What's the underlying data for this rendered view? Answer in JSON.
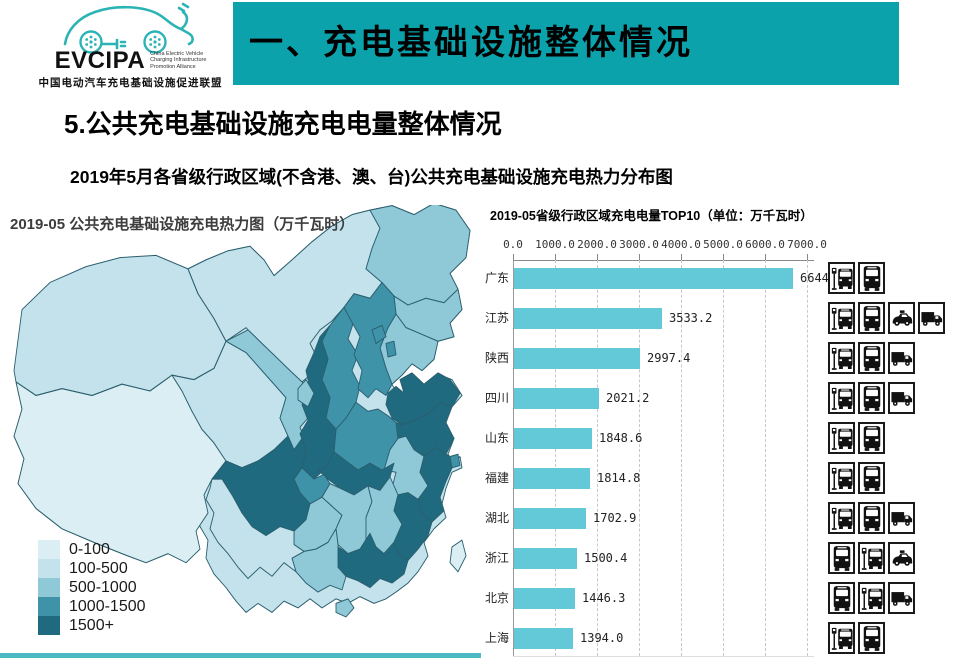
{
  "logo": {
    "acronym": "EVCIPA",
    "tagline_lines": [
      "China Electric Vehicle",
      "Charging Infrastructure",
      "Promotion Alliance"
    ],
    "chinese_name": "中国电动汽车充电基础设施促进联盟",
    "brand_color": "#2cb3b5"
  },
  "banner": {
    "title": "一、充电基础设施整体情况",
    "bg_color": "#0ca2ac"
  },
  "heading": "5.公共充电基础设施充电电量整体情况",
  "subheading": "2019年5月各省级行政区域(不含港、澳、台)公共充电基础设施充电热力分布图",
  "map": {
    "title": "2019-05 公共充电基础设施充电热力图（万千瓦时）",
    "palette": [
      "#daeef4",
      "#c3e2ec",
      "#8fc9d8",
      "#3e93a9",
      "#1f6a7e"
    ],
    "border_color": "#2b5f6e",
    "bottom_strip_color": "#4db9c3",
    "legend": [
      {
        "label": "0-100",
        "level": 1
      },
      {
        "label": "100-500",
        "level": 2
      },
      {
        "label": "500-1000",
        "level": 3
      },
      {
        "label": "1000-1500",
        "level": 4
      },
      {
        "label": "1500+",
        "level": 5
      }
    ],
    "provinces": [
      {
        "key": "xinjiang",
        "name": "新疆",
        "level": 2
      },
      {
        "key": "xizang",
        "name": "西藏",
        "level": 1
      },
      {
        "key": "qinghai",
        "name": "青海",
        "level": 2
      },
      {
        "key": "gansu",
        "name": "甘肃",
        "level": 3
      },
      {
        "key": "neimenggu",
        "name": "内蒙古",
        "level": 2
      },
      {
        "key": "heilongjiang",
        "name": "黑龙江",
        "level": 3
      },
      {
        "key": "jilin",
        "name": "吉林",
        "level": 3
      },
      {
        "key": "liaoning",
        "name": "辽宁",
        "level": 3
      },
      {
        "key": "hebei",
        "name": "河北",
        "level": 4
      },
      {
        "key": "beijing",
        "name": "北京",
        "level": 4
      },
      {
        "key": "tianjin",
        "name": "天津",
        "level": 4
      },
      {
        "key": "shanxi",
        "name": "山西",
        "level": 4
      },
      {
        "key": "shaanxi",
        "name": "陕西",
        "level": 5
      },
      {
        "key": "ningxia",
        "name": "宁夏",
        "level": 3
      },
      {
        "key": "shandong",
        "name": "山东",
        "level": 5
      },
      {
        "key": "henan",
        "name": "河南",
        "level": 4
      },
      {
        "key": "jiangsu",
        "name": "江苏",
        "level": 5
      },
      {
        "key": "anhui",
        "name": "安徽",
        "level": 3
      },
      {
        "key": "shanghai",
        "name": "上海",
        "level": 4
      },
      {
        "key": "zhejiang",
        "name": "浙江",
        "level": 5
      },
      {
        "key": "hubei",
        "name": "湖北",
        "level": 5
      },
      {
        "key": "sichuan",
        "name": "四川",
        "level": 5
      },
      {
        "key": "chongqing",
        "name": "重庆",
        "level": 4
      },
      {
        "key": "guizhou",
        "name": "贵州",
        "level": 3
      },
      {
        "key": "hunan",
        "name": "湖南",
        "level": 3
      },
      {
        "key": "jiangxi",
        "name": "江西",
        "level": 3
      },
      {
        "key": "fujian",
        "name": "福建",
        "level": 5
      },
      {
        "key": "guangdong",
        "name": "广东",
        "level": 5
      },
      {
        "key": "guangxi",
        "name": "广西",
        "level": 3
      },
      {
        "key": "yunnan",
        "name": "云南",
        "level": 2
      },
      {
        "key": "hainan",
        "name": "海南",
        "level": 3
      },
      {
        "key": "taiwan",
        "name": "台湾",
        "level": 1
      }
    ]
  },
  "chart_data": {
    "type": "bar",
    "orientation": "horizontal",
    "title": "2019-05省级行政区域充电电量TOP10（单位：万千瓦时）",
    "unit": "万千瓦时",
    "categories": [
      "广东",
      "江苏",
      "陕西",
      "四川",
      "山东",
      "福建",
      "湖北",
      "浙江",
      "北京",
      "上海"
    ],
    "values": [
      6644.4,
      3533.2,
      2997.4,
      2021.2,
      1848.6,
      1814.8,
      1702.9,
      1500.4,
      1446.3,
      1394.0
    ],
    "x_ticks": [
      "0.0",
      "1000.0",
      "2000.0",
      "3000.0",
      "4000.0",
      "5000.0",
      "6000.0",
      "7000.0"
    ],
    "xlim": [
      0,
      7000
    ],
    "grid": "dashed-vertical",
    "legend_position": "none",
    "bar_color": "#63c8d8",
    "icons": [
      [
        "bus_station",
        "bus"
      ],
      [
        "bus_station",
        "bus",
        "taxi",
        "truck"
      ],
      [
        "bus_station",
        "bus",
        "truck"
      ],
      [
        "bus_station",
        "bus",
        "truck"
      ],
      [
        "bus_station",
        "bus"
      ],
      [
        "bus_station",
        "bus"
      ],
      [
        "bus_station",
        "bus",
        "truck"
      ],
      [
        "bus",
        "bus_station",
        "taxi"
      ],
      [
        "bus",
        "bus_station",
        "truck"
      ],
      [
        "bus_station",
        "bus"
      ]
    ]
  }
}
